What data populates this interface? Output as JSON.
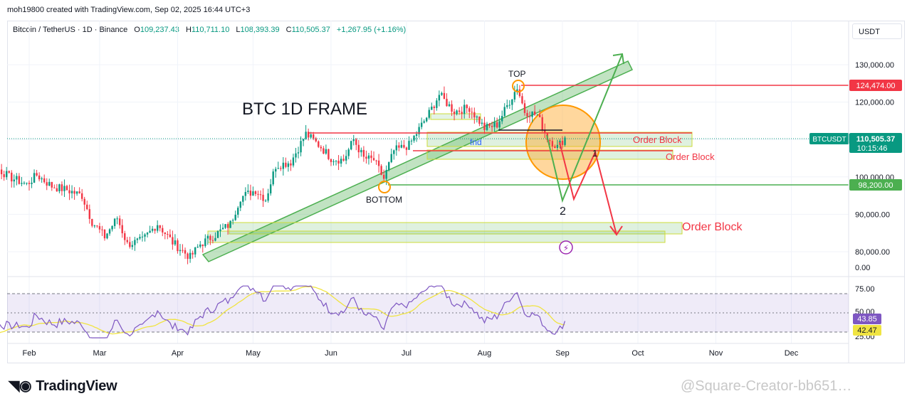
{
  "credit": "moh19800 created with TradingView.com, Sep 02, 2025 16:44 UTC+3",
  "legend": {
    "symbol": "Bitcoin / TetherUS · 1D · Binance",
    "o_label": "O",
    "o": "109,237.43",
    "h_label": "H",
    "h": "110,711.10",
    "l_label": "L",
    "l": "108,393.39",
    "c_label": "C",
    "c": "110,505.37",
    "change": "+1,267.95 (+1.16%)"
  },
  "currency_button": "USDT",
  "footer": {
    "logo": "TradingView",
    "watermark": "@Square-Creator-bb651…"
  },
  "colors": {
    "up": "#089981",
    "down": "#f23645",
    "green_line": "#4caf50",
    "rsi": "#7e57c2",
    "rsi_ma": "#f0e442",
    "orange": "#ff9800"
  },
  "chart_data": [
    {
      "type": "candlestick",
      "symbol": "BTCUSDT",
      "ylim": [
        78000,
        138000
      ],
      "y_ticks": [
        80000,
        90000,
        100000,
        110000,
        120000,
        130000
      ],
      "y_tick_labels": [
        "80,000.00",
        "90,000.00",
        "100,000.00",
        "",
        "120,000.00",
        "130,000.00"
      ],
      "x_ticks": [
        "Feb",
        "Mar",
        "Apr",
        "May",
        "Jun",
        "Jul",
        "Aug",
        "Sep",
        "Oct",
        "Nov",
        "Dec"
      ],
      "x_tick_dates": [
        "2025-02-01",
        "2025-03-01",
        "2025-04-01",
        "2025-05-01",
        "2025-06-01",
        "2025-07-01",
        "2025-08-01",
        "2025-09-01",
        "2025-10-01",
        "2025-11-01",
        "2025-12-01"
      ],
      "price_points": [
        [
          "2025-01-01",
          106000
        ],
        [
          "2025-01-06",
          104000
        ],
        [
          "2025-01-12",
          97000
        ],
        [
          "2025-01-18",
          103000
        ],
        [
          "2025-01-24",
          100000
        ],
        [
          "2025-01-31",
          98000
        ],
        [
          "2025-02-04",
          100500
        ],
        [
          "2025-02-10",
          97500
        ],
        [
          "2025-02-16",
          96500
        ],
        [
          "2025-02-22",
          95000
        ],
        [
          "2025-02-26",
          88000
        ],
        [
          "2025-03-03",
          84000
        ],
        [
          "2025-03-08",
          89000
        ],
        [
          "2025-03-12",
          82000
        ],
        [
          "2025-03-18",
          83000
        ],
        [
          "2025-03-24",
          87500
        ],
        [
          "2025-03-30",
          82500
        ],
        [
          "2025-04-06",
          78500
        ],
        [
          "2025-04-10",
          82000
        ],
        [
          "2025-04-16",
          84500
        ],
        [
          "2025-04-22",
          87500
        ],
        [
          "2025-04-26",
          94500
        ],
        [
          "2025-05-02",
          96500
        ],
        [
          "2025-05-06",
          94000
        ],
        [
          "2025-05-10",
          103000
        ],
        [
          "2025-05-16",
          104000
        ],
        [
          "2025-05-22",
          111500
        ],
        [
          "2025-05-28",
          108000
        ],
        [
          "2025-06-01",
          105000
        ],
        [
          "2025-06-06",
          104500
        ],
        [
          "2025-06-10",
          110000
        ],
        [
          "2025-06-14",
          105000
        ],
        [
          "2025-06-18",
          104500
        ],
        [
          "2025-06-22",
          99500
        ],
        [
          "2025-06-26",
          107000
        ],
        [
          "2025-07-02",
          108500
        ],
        [
          "2025-07-10",
          117000
        ],
        [
          "2025-07-14",
          122000
        ],
        [
          "2025-07-20",
          117500
        ],
        [
          "2025-07-26",
          118500
        ],
        [
          "2025-08-01",
          113000
        ],
        [
          "2025-08-06",
          114000
        ],
        [
          "2025-08-10",
          119000
        ],
        [
          "2025-08-14",
          124000
        ],
        [
          "2025-08-17",
          117500
        ],
        [
          "2025-08-22",
          116500
        ],
        [
          "2025-08-26",
          110500
        ],
        [
          "2025-08-30",
          108000
        ],
        [
          "2025-09-02",
          110505
        ]
      ],
      "last_price": 110505.37,
      "labels": {
        "last_price_symbol": "BTCUSDT",
        "last_price": "110,505.37",
        "countdown": "10:15:46",
        "top_level": "124,474.00",
        "support_level": "98,200.00"
      },
      "annotations": {
        "title": "BTC 1D FRAME",
        "top": "TOP",
        "bottom": "BOTTOM",
        "order_block_1": "Order Block",
        "order_block_2": "Order Block",
        "order_block_3": "Order Block",
        "wave_1": "1",
        "wave_2": "2",
        "tag": "fnd"
      },
      "levels": {
        "top": 124474,
        "support": 98200
      }
    },
    {
      "type": "line",
      "name": "RSI",
      "ylim": [
        22,
        80
      ],
      "ticks": [
        75,
        50,
        25
      ],
      "tick_labels": [
        "75.00",
        "50.00",
        "25.00"
      ],
      "upper_band": 70,
      "lower_band": 30,
      "mid": 50,
      "rsi_last": "43.85",
      "ma_last": "42.47",
      "top_label": "0.00"
    }
  ]
}
